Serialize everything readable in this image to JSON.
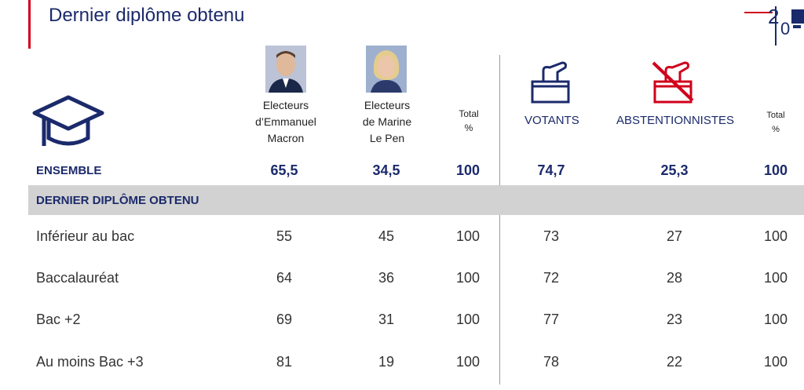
{
  "header": {
    "title": "Dernier diplôme obtenu",
    "logo_text": "20"
  },
  "columns": {
    "macron": "Electeurs\nd’Emmanuel\nMacron",
    "lepen": "Electeurs\nde Marine\nLe Pen",
    "total1": "Total\n%",
    "votants": "VOTANTS",
    "abstention": "ABSTENTIONNISTES",
    "total2": "Total\n%"
  },
  "ensemble": {
    "label": "ENSEMBLE",
    "values": [
      "65,5",
      "34,5",
      "100",
      "74,7",
      "25,3",
      "100"
    ]
  },
  "section": {
    "label": "DERNIER DIPLÔME OBTENU"
  },
  "rows": [
    {
      "label": "Inférieur au bac",
      "values": [
        "55",
        "45",
        "100",
        "73",
        "27",
        "100"
      ]
    },
    {
      "label": "Baccalauréat",
      "values": [
        "64",
        "36",
        "100",
        "72",
        "28",
        "100"
      ]
    },
    {
      "label": "Bac +2",
      "values": [
        "69",
        "31",
        "100",
        "77",
        "23",
        "100"
      ]
    },
    {
      "label": "Au moins Bac +3",
      "values": [
        "81",
        "19",
        "100",
        "78",
        "22",
        "100"
      ]
    }
  ],
  "icons": {
    "graduation": "graduation-cap-icon",
    "vote": "ballot-box-icon",
    "no_vote": "crossed-ballot-icon"
  },
  "colors": {
    "navy": "#1b2a6b",
    "red": "#d0021b",
    "band": "#d2d2d2"
  }
}
